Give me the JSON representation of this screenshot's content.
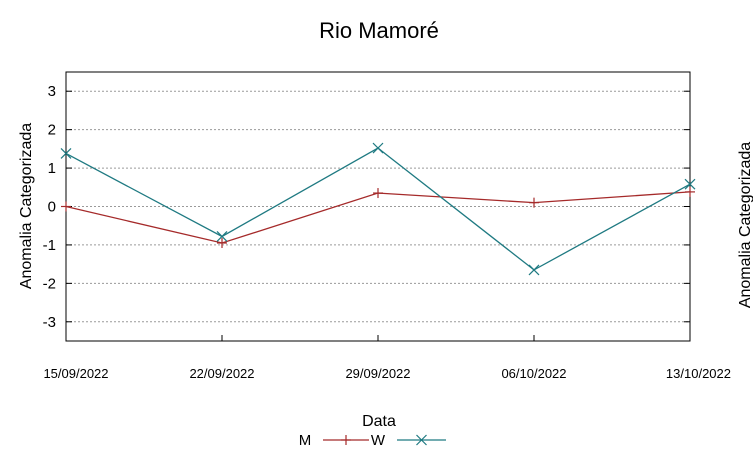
{
  "chart_data": {
    "type": "line",
    "title": "Rio Mamoré",
    "xlabel": "Data",
    "ylabel": "Anomalia Categorizada",
    "ylabel_clipped": "Anomalia Categorizada",
    "categories": [
      "15/09/2022",
      "22/09/2022",
      "29/09/2022",
      "06/10/2022",
      "13/10/2022"
    ],
    "yticks": [
      "-3",
      "-2",
      "-1",
      "0",
      "1",
      "2",
      "3"
    ],
    "ylim": [
      -3.5,
      3.5
    ],
    "grid": true,
    "legend_position": "bottom-center",
    "series": [
      {
        "name": "M",
        "color": "#a52a2a",
        "marker": "plus",
        "values": [
          0.0,
          -0.95,
          0.35,
          0.1,
          0.38
        ]
      },
      {
        "name": "W",
        "color": "#1f7a82",
        "marker": "x",
        "values": [
          1.38,
          -0.78,
          1.52,
          -1.65,
          0.58
        ]
      }
    ]
  }
}
